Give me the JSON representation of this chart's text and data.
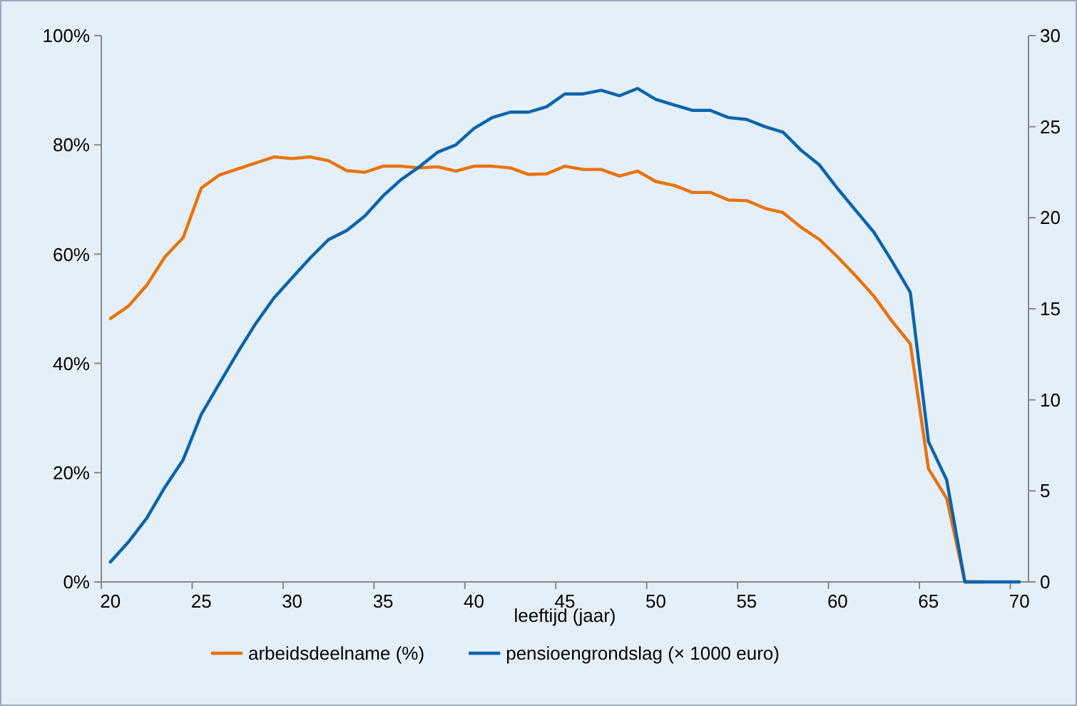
{
  "chart_data": {
    "type": "line",
    "xlabel": "leeftijd (jaar)",
    "categories": [
      "20",
      null,
      null,
      null,
      null,
      "25",
      null,
      null,
      null,
      null,
      "30",
      null,
      null,
      null,
      null,
      "35",
      null,
      null,
      null,
      null,
      "40",
      null,
      null,
      null,
      null,
      "45",
      null,
      null,
      null,
      null,
      "50",
      null,
      null,
      null,
      null,
      "55",
      null,
      null,
      null,
      null,
      "60",
      null,
      null,
      null,
      null,
      "65",
      null,
      null,
      null,
      null,
      "70"
    ],
    "series": [
      {
        "name": "arbeidsdeelname (%)",
        "color": "#e8730c",
        "values": [
          48.2,
          50.5,
          54.3,
          59.5,
          63.0,
          72.1,
          74.5,
          75.6,
          76.7,
          77.8,
          77.5,
          77.8,
          77.1,
          75.3,
          75.0,
          76.1,
          76.1,
          75.8,
          76.0,
          75.2,
          76.1,
          76.1,
          75.8,
          74.6,
          74.7,
          76.1,
          75.5,
          75.5,
          74.3,
          75.2,
          73.3,
          72.6,
          71.3,
          71.3,
          69.9,
          69.8,
          68.4,
          67.6,
          64.9,
          62.7,
          59.5,
          56.0,
          52.3,
          47.7,
          43.6,
          20.7,
          15.3,
          0,
          0,
          null,
          null
        ]
      },
      {
        "name": "pensioengrondslag (× 1000 euro)",
        "color": "#0a64ad",
        "axis": "y2",
        "values": [
          1.1,
          2.2,
          3.5,
          5.2,
          6.7,
          9.2,
          10.9,
          12.6,
          14.2,
          15.6,
          16.7,
          17.8,
          18.8,
          19.3,
          20.1,
          21.2,
          22.1,
          22.8,
          23.6,
          24.0,
          24.9,
          25.5,
          25.8,
          25.8,
          26.1,
          26.8,
          26.8,
          27.0,
          26.7,
          27.1,
          26.5,
          26.2,
          25.9,
          25.9,
          25.5,
          25.4,
          25.0,
          24.7,
          23.7,
          22.9,
          21.6,
          20.4,
          19.2,
          17.6,
          15.9,
          7.7,
          5.6,
          0,
          0,
          0,
          0
        ]
      }
    ],
    "ylim": [
      0,
      100
    ],
    "yticks": [
      {
        "value": 0,
        "label": "0%"
      },
      {
        "value": 20,
        "label": "20%"
      },
      {
        "value": 40,
        "label": "40%"
      },
      {
        "value": 60,
        "label": "60%"
      },
      {
        "value": 80,
        "label": "80%"
      },
      {
        "value": 100,
        "label": "100%"
      }
    ],
    "y2lim": [
      0,
      30
    ],
    "y2ticks": [
      0,
      5,
      10,
      15,
      20,
      25,
      30
    ],
    "grid": false,
    "legend": "bottom",
    "marker": "none",
    "line_style": "solid"
  }
}
